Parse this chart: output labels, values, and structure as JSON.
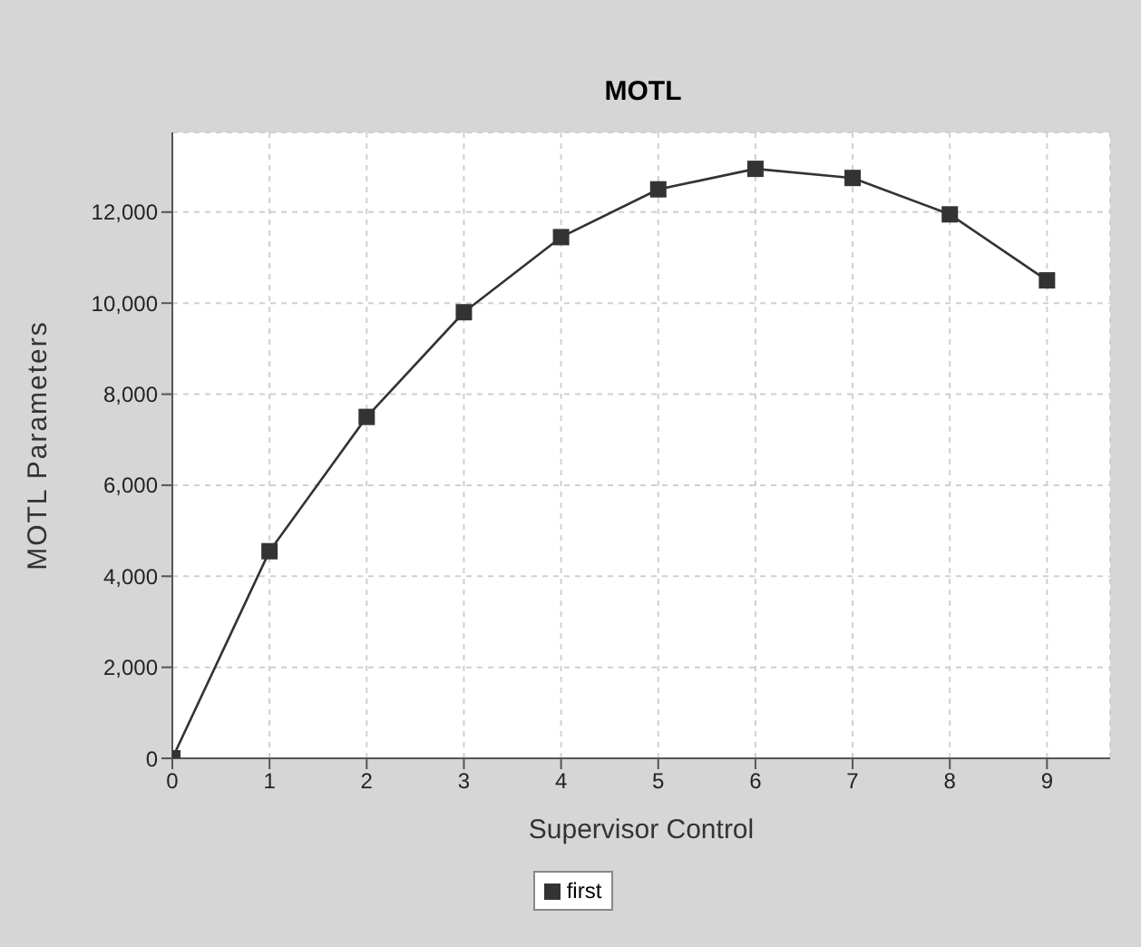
{
  "chart_data": {
    "type": "line",
    "title": "MOTL",
    "xlabel": "Supervisor Control",
    "ylabel": "MOTL Parameters",
    "x": [
      0,
      1,
      2,
      3,
      4,
      5,
      6,
      7,
      8,
      9
    ],
    "series": [
      {
        "name": "first",
        "color": "#333333",
        "values": [
          0,
          4550,
          7500,
          9800,
          11450,
          12500,
          12950,
          12750,
          11950,
          10500
        ]
      }
    ],
    "xlim": [
      0,
      9.65
    ],
    "xticks": [
      0,
      1,
      2,
      3,
      4,
      5,
      6,
      7,
      8,
      9
    ],
    "ylim": [
      0,
      13750
    ],
    "yticks": [
      0,
      {
        "value": 2000,
        "label": "2,000"
      },
      {
        "value": 4000,
        "label": "4,000"
      },
      {
        "value": 6000,
        "label": "6,000"
      },
      {
        "value": 8000,
        "label": "8,000"
      },
      {
        "value": 10000,
        "label": "10,000"
      },
      {
        "value": 12000,
        "label": "12,000"
      }
    ],
    "grid": true,
    "legend": "bottom",
    "marker": "square",
    "line_style": "solid"
  }
}
